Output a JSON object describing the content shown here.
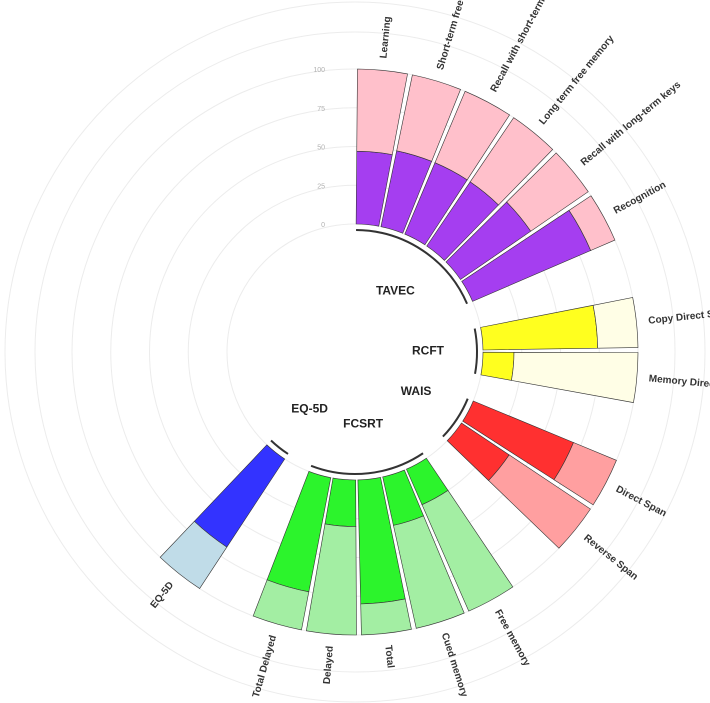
{
  "chart_data": {
    "type": "circular-stacked-bar",
    "radial_ticks": [
      "0",
      "25",
      "50",
      "75",
      "100"
    ],
    "grid": true,
    "groups": [
      {
        "name": "TAVEC",
        "dark_color": "#a53ef0",
        "light_color": "#ffc0cb",
        "bars": [
          {
            "label": "Learning",
            "inner": 47,
            "total": 100
          },
          {
            "label": "Short-term free memory",
            "inner": 50,
            "total": 100
          },
          {
            "label": "Recall with short-term keys",
            "inner": 50,
            "total": 100
          },
          {
            "label": "Long term free memory",
            "inner": 50,
            "total": 100
          },
          {
            "label": "Recall with long-term keys",
            "inner": 55,
            "total": 100
          },
          {
            "label": "Recognition",
            "inner": 83,
            "total": 100
          }
        ]
      },
      {
        "name": "RCFT",
        "dark_color": "#ffff1f",
        "light_color": "#fffee6",
        "bars": [
          {
            "label": "Copy Direct Score",
            "inner": 74,
            "total": 100
          },
          {
            "label": "Memory Direct Score",
            "inner": 20,
            "total": 100
          }
        ]
      },
      {
        "name": "WAIS",
        "dark_color": "#ff3030",
        "light_color": "#ff9fa0",
        "bars": [
          {
            "label": "Direct Span",
            "inner": 70,
            "total": 100
          },
          {
            "label": "Reverse Span",
            "inner": 37,
            "total": 100
          }
        ]
      },
      {
        "name": "FCSRT",
        "dark_color": "#2cf42c",
        "light_color": "#a3eea3",
        "bars": [
          {
            "label": "Free memory",
            "inner": 25,
            "total": 100
          },
          {
            "label": "Cued memory",
            "inner": 32,
            "total": 100
          },
          {
            "label": "Total",
            "inner": 80,
            "total": 100
          },
          {
            "label": "Delayed",
            "inner": 30,
            "total": 100
          },
          {
            "label": "Total Delayed",
            "inner": 75,
            "total": 100
          }
        ]
      },
      {
        "name": "EQ-5D",
        "dark_color": "#3333ff",
        "light_color": "#c0dce8",
        "bars": [
          {
            "label": "EQ-5D",
            "inner": 68,
            "total": 100
          }
        ]
      }
    ]
  }
}
